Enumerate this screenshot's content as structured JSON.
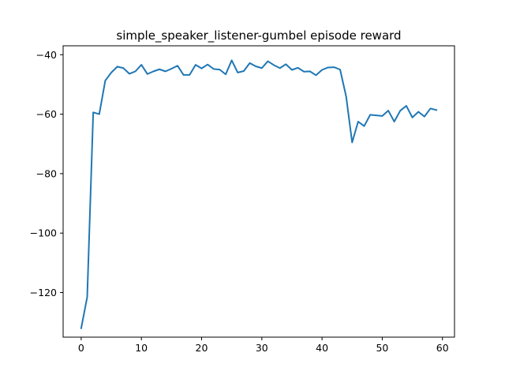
{
  "chart_data": {
    "type": "line",
    "title": "simple_speaker_listener-gumbel episode reward",
    "xlabel": "",
    "ylabel": "",
    "xlim": [
      -3,
      62
    ],
    "ylim": [
      -135,
      -37
    ],
    "xticks": [
      0,
      10,
      20,
      30,
      40,
      50,
      60
    ],
    "yticks": [
      -120,
      -100,
      -80,
      -60,
      -40
    ],
    "grid": false,
    "series": [
      {
        "color": "#1f77b4",
        "x": [
          0,
          1,
          2,
          3,
          4,
          5,
          6,
          7,
          8,
          9,
          10,
          11,
          12,
          13,
          14,
          15,
          16,
          17,
          18,
          19,
          20,
          21,
          22,
          23,
          24,
          25,
          26,
          27,
          28,
          29,
          30,
          31,
          32,
          33,
          34,
          35,
          36,
          37,
          38,
          39,
          40,
          41,
          42,
          43,
          44,
          45,
          46,
          47,
          48,
          49,
          50,
          51,
          52,
          53,
          54,
          55,
          56,
          57,
          58,
          59
        ],
        "values": [
          -132,
          -121.5,
          -59.4,
          -60,
          -48.7,
          -46,
          -44,
          -44.5,
          -46.4,
          -45.6,
          -43.4,
          -46.5,
          -45.6,
          -44.9,
          -45.6,
          -44.7,
          -43.7,
          -46.8,
          -46.8,
          -43.4,
          -44.6,
          -43.3,
          -44.8,
          -45,
          -46.6,
          -41.9,
          -46,
          -45.5,
          -42.8,
          -43.9,
          -44.5,
          -42.2,
          -43.5,
          -44.5,
          -43.2,
          -45.1,
          -44.4,
          -45.7,
          -45.6,
          -46.9,
          -45.1,
          -44.3,
          -44.2,
          -45,
          -54,
          -69.5,
          -62.5,
          -64,
          -60.2,
          -60.4,
          -60.6,
          -58.8,
          -62.5,
          -58.8,
          -57.2,
          -61.1,
          -59.2,
          -60.8,
          -58.1,
          -58.6
        ]
      }
    ]
  }
}
